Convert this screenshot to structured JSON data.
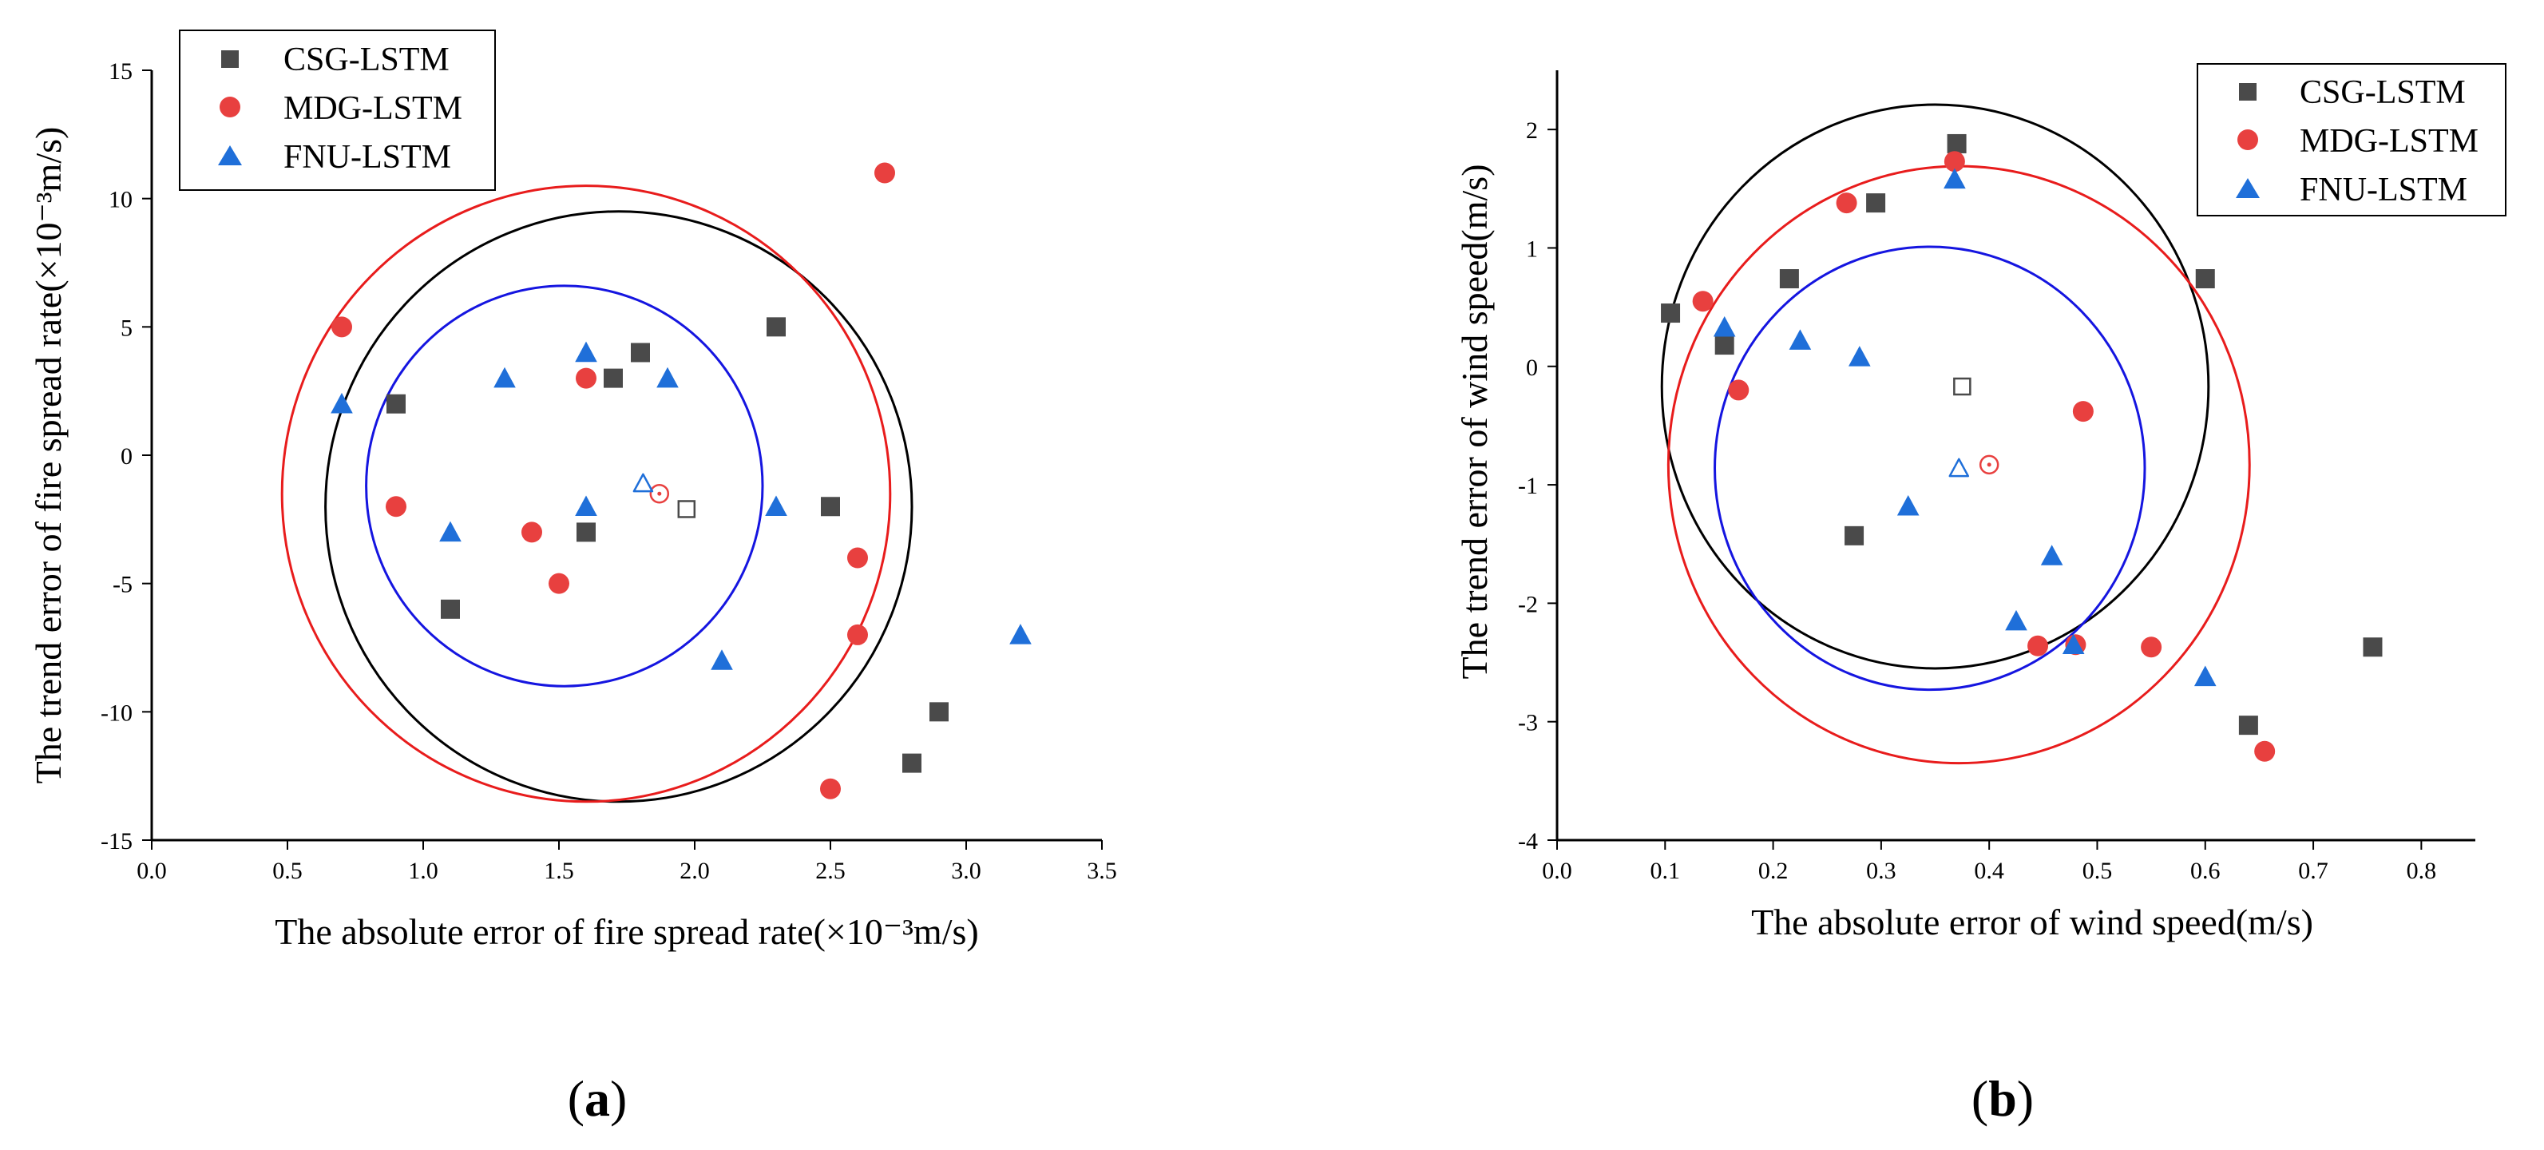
{
  "figure": {
    "colors": {
      "CSG-LSTM": "#4a4a4a",
      "MDG-LSTM": "#e8403f",
      "FNU-LSTM": "#1f6fd9",
      "circle_csg": "#000000",
      "circle_mdg": "#e81c1c",
      "circle_fnu": "#1515e0"
    }
  },
  "chart_data": [
    {
      "type": "scatter",
      "panel_label": "a",
      "xlabel": "The absolute error of fire spread rate(×10⁻³m/s)",
      "ylabel": "The trend error of fire spread rate(×10⁻³m/s)",
      "xlim": [
        0,
        3.5
      ],
      "ylim": [
        -15,
        15
      ],
      "xticks": [
        "0.0",
        "0.5",
        "1.0",
        "1.5",
        "2.0",
        "2.5",
        "3.0",
        "3.5"
      ],
      "yticks": [
        "-15",
        "-10",
        "-5",
        "0",
        "5",
        "10",
        "15"
      ],
      "legend": [
        "CSG-LSTM",
        "MDG-LSTM",
        "FNU-LSTM"
      ],
      "series": [
        {
          "name": "CSG-LSTM",
          "marker": "square",
          "points": [
            [
              0.9,
              2
            ],
            [
              1.1,
              -6
            ],
            [
              1.6,
              -3
            ],
            [
              1.7,
              3
            ],
            [
              1.8,
              4
            ],
            [
              2.3,
              5
            ],
            [
              2.5,
              -2
            ],
            [
              2.8,
              -12
            ],
            [
              2.9,
              -10
            ]
          ],
          "centroid": [
            1.97,
            -2.1
          ],
          "circle": {
            "center": [
              1.72,
              -2.0
            ],
            "radius": [
              1.08,
              11.5
            ]
          }
        },
        {
          "name": "MDG-LSTM",
          "marker": "circle",
          "points": [
            [
              0.7,
              5
            ],
            [
              0.9,
              -2
            ],
            [
              1.4,
              -3
            ],
            [
              1.5,
              -5
            ],
            [
              1.6,
              3
            ],
            [
              2.5,
              -13
            ],
            [
              2.6,
              -4
            ],
            [
              2.6,
              -7
            ],
            [
              2.7,
              11
            ]
          ],
          "centroid": [
            1.87,
            -1.5
          ],
          "circle": {
            "center": [
              1.6,
              -1.5
            ],
            "radius": [
              1.12,
              12.0
            ]
          }
        },
        {
          "name": "FNU-LSTM",
          "marker": "triangle",
          "points": [
            [
              0.7,
              2
            ],
            [
              1.1,
              -3
            ],
            [
              1.3,
              3
            ],
            [
              1.6,
              4
            ],
            [
              1.6,
              -2
            ],
            [
              1.9,
              3
            ],
            [
              2.1,
              -8
            ],
            [
              2.3,
              -2
            ],
            [
              3.2,
              -7
            ]
          ],
          "centroid": [
            1.81,
            -1.1
          ],
          "circle": {
            "center": [
              1.52,
              -1.2
            ],
            "radius": [
              0.73,
              7.8
            ]
          }
        }
      ]
    },
    {
      "type": "scatter",
      "panel_label": "b",
      "xlabel": "The absolute error of wind speed(m/s)",
      "ylabel": "The trend error of wind speed(m/s)",
      "xlim": [
        0,
        0.85
      ],
      "ylim": [
        -4,
        2.5
      ],
      "xticks": [
        "0.0",
        "0.1",
        "0.2",
        "0.3",
        "0.4",
        "0.5",
        "0.6",
        "0.7",
        "0.8"
      ],
      "yticks": [
        "-4",
        "-3",
        "-2",
        "-1",
        "0",
        "1",
        "2"
      ],
      "legend": [
        "CSG-LSTM",
        "MDG-LSTM",
        "FNU-LSTM"
      ],
      "series": [
        {
          "name": "CSG-LSTM",
          "marker": "square",
          "points": [
            [
              0.105,
              0.45
            ],
            [
              0.155,
              0.18
            ],
            [
              0.215,
              0.74
            ],
            [
              0.275,
              -1.43
            ],
            [
              0.295,
              1.38
            ],
            [
              0.37,
              1.88
            ],
            [
              0.6,
              0.74
            ],
            [
              0.64,
              -3.03
            ],
            [
              0.755,
              -2.37
            ]
          ],
          "centroid": [
            0.375,
            -0.17
          ],
          "circle": {
            "center": [
              0.35,
              -0.17
            ],
            "radius": [
              0.253,
              2.38
            ]
          }
        },
        {
          "name": "MDG-LSTM",
          "marker": "circle",
          "points": [
            [
              0.135,
              0.55
            ],
            [
              0.168,
              -0.2
            ],
            [
              0.268,
              1.38
            ],
            [
              0.368,
              1.73
            ],
            [
              0.445,
              -2.36
            ],
            [
              0.48,
              -2.35
            ],
            [
              0.487,
              -0.38
            ],
            [
              0.55,
              -2.37
            ],
            [
              0.655,
              -3.25
            ]
          ],
          "centroid": [
            0.4,
            -0.83
          ],
          "circle": {
            "center": [
              0.372,
              -0.83
            ],
            "radius": [
              0.269,
              2.52
            ]
          }
        },
        {
          "name": "FNU-LSTM",
          "marker": "triangle",
          "points": [
            [
              0.155,
              0.33
            ],
            [
              0.225,
              0.22
            ],
            [
              0.28,
              0.08
            ],
            [
              0.325,
              -1.18
            ],
            [
              0.368,
              1.58
            ],
            [
              0.425,
              -2.15
            ],
            [
              0.458,
              -1.6
            ],
            [
              0.478,
              -2.35
            ],
            [
              0.6,
              -2.62
            ]
          ],
          "centroid": [
            0.372,
            -0.86
          ],
          "circle": {
            "center": [
              0.345,
              -0.86
            ],
            "radius": [
              0.199,
              1.87
            ]
          }
        }
      ]
    }
  ]
}
